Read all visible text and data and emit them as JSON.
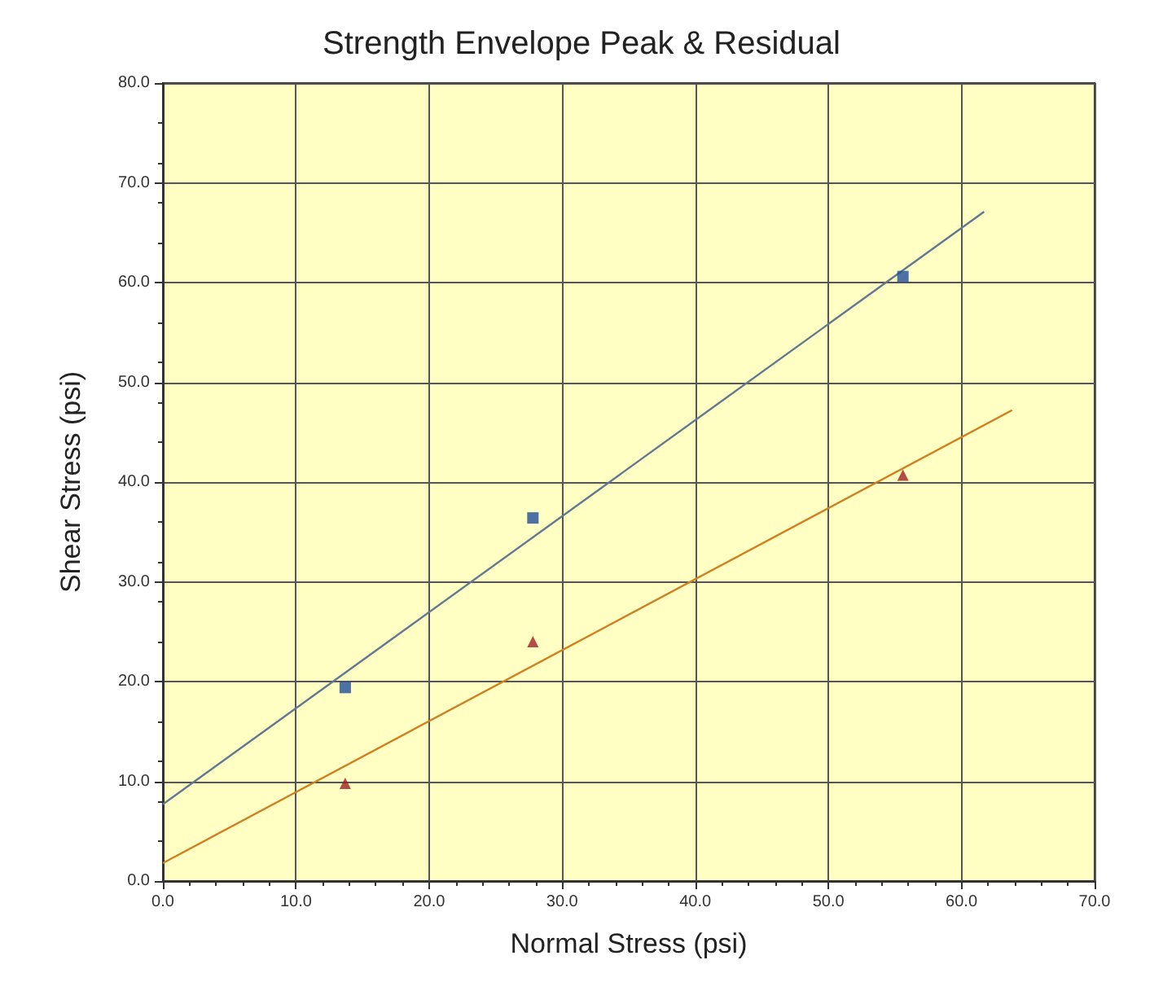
{
  "chart_data": {
    "type": "scatter",
    "title": "Strength Envelope Peak & Residual",
    "xlabel": "Normal Stress (psi)",
    "ylabel": "Shear Stress (psi)",
    "xlim": [
      0,
      70
    ],
    "ylim": [
      0,
      80
    ],
    "xticks": [
      {
        "value": 0,
        "label": "0.0"
      },
      {
        "value": 10,
        "label": "10.0"
      },
      {
        "value": 20,
        "label": "20.0"
      },
      {
        "value": 30,
        "label": "30.0"
      },
      {
        "value": 40,
        "label": "40.0"
      },
      {
        "value": 50,
        "label": "50.0"
      },
      {
        "value": 60,
        "label": "60.0"
      },
      {
        "value": 70,
        "label": "70.0"
      }
    ],
    "yticks": [
      {
        "value": 0,
        "label": "0.0"
      },
      {
        "value": 10,
        "label": "10.0"
      },
      {
        "value": 20,
        "label": "20.0"
      },
      {
        "value": 30,
        "label": "30.0"
      },
      {
        "value": 40,
        "label": "40.0"
      },
      {
        "value": 50,
        "label": "50.0"
      },
      {
        "value": 60,
        "label": "60.0"
      },
      {
        "value": 70,
        "label": "70.0"
      },
      {
        "value": 80,
        "label": "80.0"
      }
    ],
    "grid": true,
    "series": [
      {
        "marker": "square",
        "color": "#1f4e9a",
        "x": [
          13.7,
          27.8,
          55.6
        ],
        "values": [
          19.4,
          36.4,
          60.6
        ]
      },
      {
        "marker": "triangle",
        "color": "#a02020",
        "x": [
          13.7,
          27.8,
          55.6
        ],
        "values": [
          9.8,
          24.0,
          40.7
        ]
      },
      {
        "type": "line",
        "marker": "none",
        "color": "#607890",
        "x": [
          0,
          61.7
        ],
        "values": [
          7.7,
          67.1
        ]
      },
      {
        "type": "line",
        "marker": "none",
        "color": "#d08020",
        "x": [
          0,
          63.8
        ],
        "values": [
          1.8,
          47.2
        ]
      }
    ]
  }
}
